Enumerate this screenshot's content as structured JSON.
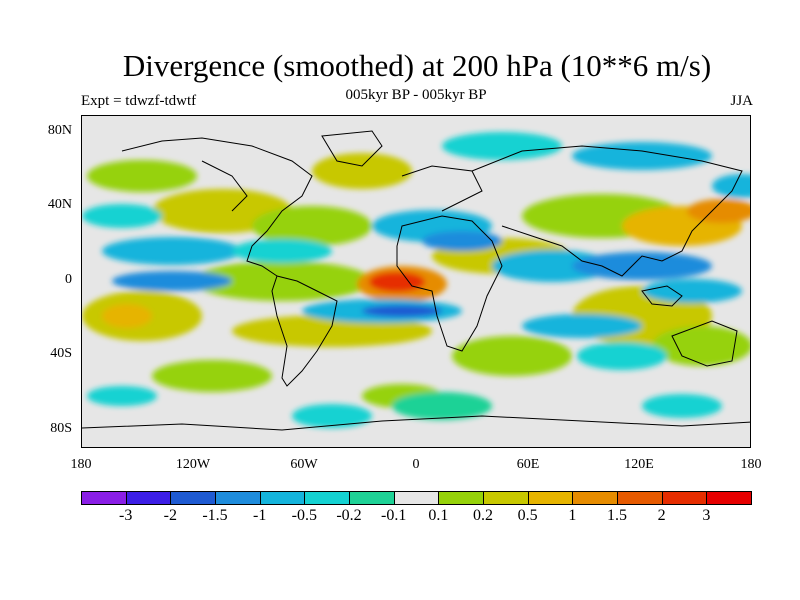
{
  "title": "Divergence (smoothed) at 200 hPa (10**6 m/s)",
  "subtitle": "005kyr BP - 005kyr BP",
  "left_label": "Expt = tdwzf-tdwtf",
  "right_label": "JJA",
  "lat_labels": [
    "80N",
    "40N",
    "0",
    "40S",
    "80S"
  ],
  "lon_labels": [
    "180",
    "120W",
    "60W",
    "0",
    "60E",
    "120E",
    "180"
  ],
  "colorbar": {
    "labels": [
      "-3",
      "-2",
      "-1.5",
      "-1",
      "-0.5",
      "-0.2",
      "-0.1",
      "0.1",
      "0.2",
      "0.5",
      "1",
      "1.5",
      "2",
      "3"
    ],
    "colors": [
      "#8a1ee6",
      "#3c1ee6",
      "#1e5ad2",
      "#1e8cdc",
      "#14b4dc",
      "#14d2d2",
      "#1ed296",
      "#e6e6e6",
      "#96d20a",
      "#c8c800",
      "#e6b400",
      "#e68c00",
      "#e65a00",
      "#e62d00",
      "#e60000"
    ]
  },
  "map": {
    "background": "#e6e6e6",
    "coastline_color": "#000000"
  }
}
